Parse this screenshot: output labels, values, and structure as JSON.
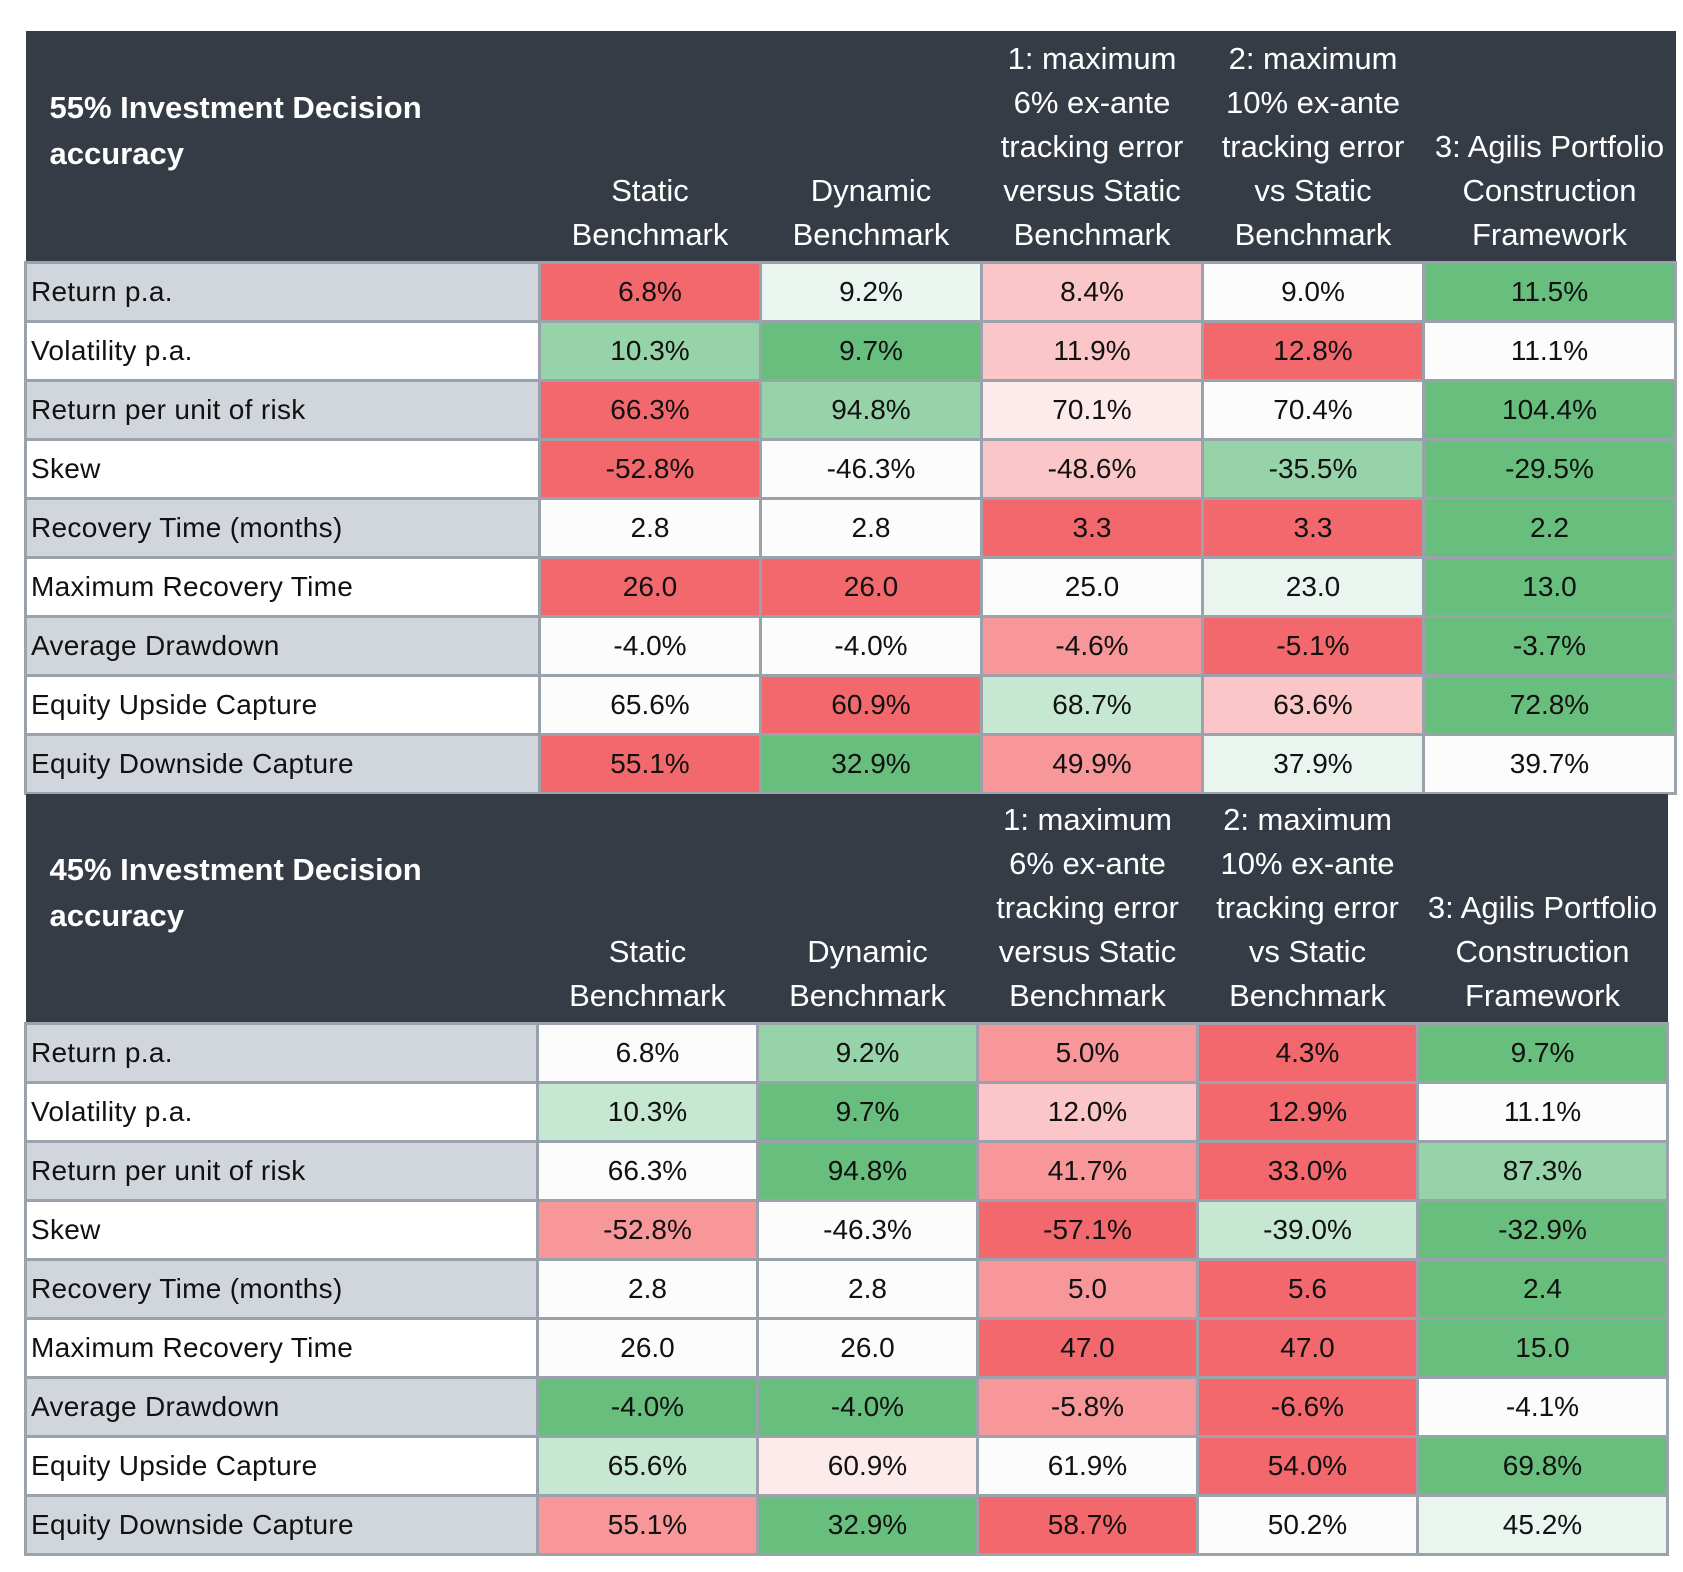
{
  "colors": {
    "header_bg": "#353c45",
    "label_odd_bg": "#d0d6dc",
    "scale": {
      "R3": "#f2686c",
      "R2": "#f7979a",
      "R1": "#fbc6c8",
      "R0": "#fdeaeb",
      "W": "#fdfcfd",
      "G0": "#e9f5ee",
      "G1": "#c6e7d1",
      "G2": "#96d3a9",
      "G3": "#67be7d"
    }
  },
  "tables": [
    {
      "caption": "55% Investment Decision\naccuracy",
      "columns": [
        "Static\nBenchmark",
        "Dynamic\nBenchmark",
        "1: maximum\n6% ex-ante\ntracking error\nversus Static\nBenchmark",
        "2: maximum\n10% ex-ante\ntracking error\nvs Static\nBenchmark",
        "3: Agilis Portfolio\nConstruction\nFramework"
      ],
      "rows": [
        {
          "label": "Return p.a.",
          "values": [
            "6.8%",
            "9.2%",
            "8.4%",
            "9.0%",
            "11.5%"
          ],
          "shade": [
            "R3",
            "G0",
            "R1",
            "W",
            "G3"
          ]
        },
        {
          "label": "Volatility p.a.",
          "values": [
            "10.3%",
            "9.7%",
            "11.9%",
            "12.8%",
            "11.1%"
          ],
          "shade": [
            "G2",
            "G3",
            "R1",
            "R3",
            "W"
          ]
        },
        {
          "label": "Return per unit of risk",
          "values": [
            "66.3%",
            "94.8%",
            "70.1%",
            "70.4%",
            "104.4%"
          ],
          "shade": [
            "R3",
            "G2",
            "R0",
            "W",
            "G3"
          ]
        },
        {
          "label": "Skew",
          "values": [
            "-52.8%",
            "-46.3%",
            "-48.6%",
            "-35.5%",
            "-29.5%"
          ],
          "shade": [
            "R3",
            "W",
            "R1",
            "G2",
            "G3"
          ]
        },
        {
          "label": "Recovery Time (months)",
          "values": [
            "2.8",
            "2.8",
            "3.3",
            "3.3",
            "2.2"
          ],
          "shade": [
            "W",
            "W",
            "R3",
            "R3",
            "G3"
          ]
        },
        {
          "label": "Maximum Recovery Time",
          "values": [
            "26.0",
            "26.0",
            "25.0",
            "23.0",
            "13.0"
          ],
          "shade": [
            "R3",
            "R3",
            "W",
            "G0",
            "G3"
          ]
        },
        {
          "label": "Average Drawdown",
          "values": [
            "-4.0%",
            "-4.0%",
            "-4.6%",
            "-5.1%",
            "-3.7%"
          ],
          "shade": [
            "W",
            "W",
            "R2",
            "R3",
            "G3"
          ]
        },
        {
          "label": "Equity Upside Capture",
          "values": [
            "65.6%",
            "60.9%",
            "68.7%",
            "63.6%",
            "72.8%"
          ],
          "shade": [
            "W",
            "R3",
            "G1",
            "R1",
            "G3"
          ]
        },
        {
          "label": "Equity Downside Capture",
          "values": [
            "55.1%",
            "32.9%",
            "49.9%",
            "37.9%",
            "39.7%"
          ],
          "shade": [
            "R3",
            "G3",
            "R2",
            "G0",
            "W"
          ]
        }
      ]
    },
    {
      "caption": "45% Investment Decision\naccuracy",
      "columns": [
        "Static\nBenchmark",
        "Dynamic\nBenchmark",
        "1: maximum\n6% ex-ante\ntracking error\nversus Static\nBenchmark",
        "2: maximum\n10% ex-ante\ntracking error\nvs Static\nBenchmark",
        "3: Agilis Portfolio\nConstruction\nFramework"
      ],
      "rows": [
        {
          "label": "Return p.a.",
          "values": [
            "6.8%",
            "9.2%",
            "5.0%",
            "4.3%",
            "9.7%"
          ],
          "shade": [
            "W",
            "G2",
            "R2",
            "R3",
            "G3"
          ]
        },
        {
          "label": "Volatility p.a.",
          "values": [
            "10.3%",
            "9.7%",
            "12.0%",
            "12.9%",
            "11.1%"
          ],
          "shade": [
            "G1",
            "G3",
            "R1",
            "R3",
            "W"
          ]
        },
        {
          "label": "Return per unit of risk",
          "values": [
            "66.3%",
            "94.8%",
            "41.7%",
            "33.0%",
            "87.3%"
          ],
          "shade": [
            "W",
            "G3",
            "R2",
            "R3",
            "G2"
          ]
        },
        {
          "label": "Skew",
          "values": [
            "-52.8%",
            "-46.3%",
            "-57.1%",
            "-39.0%",
            "-32.9%"
          ],
          "shade": [
            "R2",
            "W",
            "R3",
            "G1",
            "G3"
          ]
        },
        {
          "label": "Recovery Time (months)",
          "values": [
            "2.8",
            "2.8",
            "5.0",
            "5.6",
            "2.4"
          ],
          "shade": [
            "W",
            "W",
            "R2",
            "R3",
            "G3"
          ]
        },
        {
          "label": "Maximum Recovery Time",
          "values": [
            "26.0",
            "26.0",
            "47.0",
            "47.0",
            "15.0"
          ],
          "shade": [
            "W",
            "W",
            "R3",
            "R3",
            "G3"
          ]
        },
        {
          "label": "Average Drawdown",
          "values": [
            "-4.0%",
            "-4.0%",
            "-5.8%",
            "-6.6%",
            "-4.1%"
          ],
          "shade": [
            "G3",
            "G3",
            "R2",
            "R3",
            "W"
          ]
        },
        {
          "label": "Equity Upside Capture",
          "values": [
            "65.6%",
            "60.9%",
            "61.9%",
            "54.0%",
            "69.8%"
          ],
          "shade": [
            "G1",
            "R0",
            "W",
            "R3",
            "G3"
          ]
        },
        {
          "label": "Equity Downside Capture",
          "values": [
            "55.1%",
            "32.9%",
            "58.7%",
            "50.2%",
            "45.2%"
          ],
          "shade": [
            "R2",
            "G3",
            "R3",
            "W",
            "G0"
          ]
        }
      ]
    }
  ]
}
